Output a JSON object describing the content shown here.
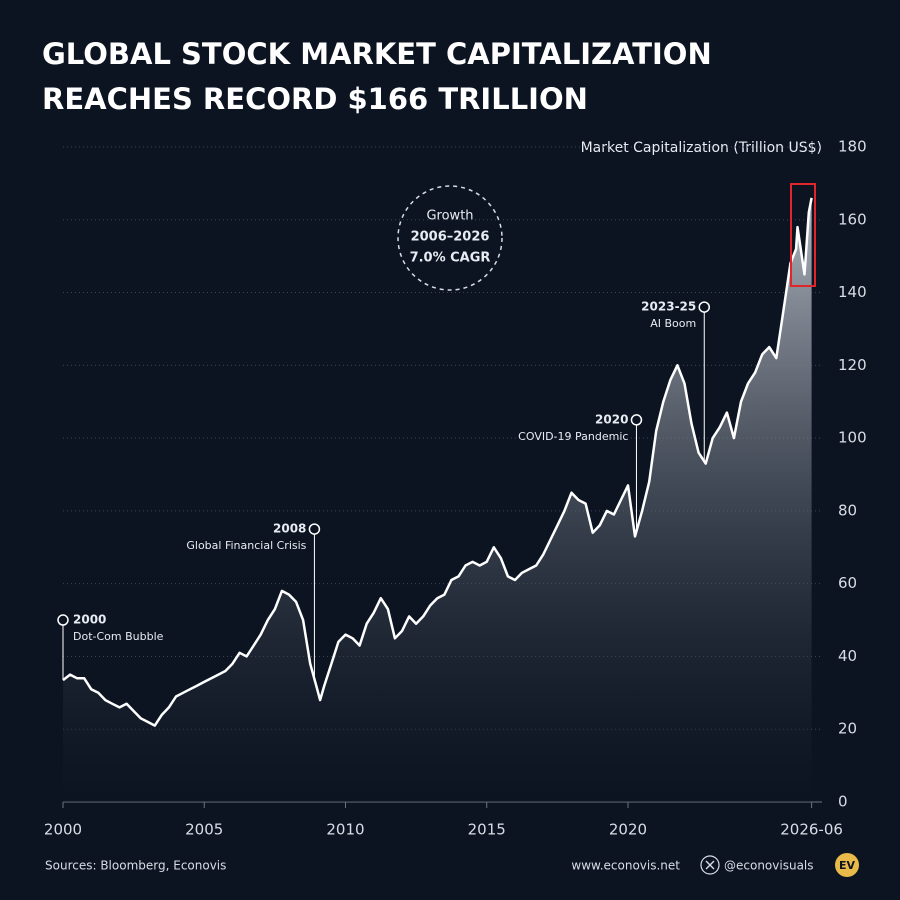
{
  "chart_data": {
    "type": "area",
    "title": [
      "GLOBAL STOCK MARKET CAPITALIZATION",
      "REACHES RECORD $166 TRILLION"
    ],
    "y_label": "Market Capitalization (Trillion US$)",
    "x": [
      2000.0,
      2000.25,
      2000.5,
      2000.75,
      2001.0,
      2001.25,
      2001.5,
      2001.75,
      2002.0,
      2002.25,
      2002.5,
      2002.75,
      2003.0,
      2003.25,
      2003.5,
      2003.75,
      2004.0,
      2004.25,
      2004.5,
      2004.75,
      2005.0,
      2005.25,
      2005.5,
      2005.75,
      2006.0,
      2006.25,
      2006.5,
      2006.75,
      2007.0,
      2007.25,
      2007.5,
      2007.75,
      2008.0,
      2008.25,
      2008.5,
      2008.75,
      2009.0,
      2009.1,
      2009.25,
      2009.5,
      2009.75,
      2010.0,
      2010.25,
      2010.5,
      2010.75,
      2011.0,
      2011.25,
      2011.5,
      2011.75,
      2012.0,
      2012.25,
      2012.5,
      2012.75,
      2013.0,
      2013.25,
      2013.5,
      2013.75,
      2014.0,
      2014.25,
      2014.5,
      2014.75,
      2015.0,
      2015.25,
      2015.5,
      2015.75,
      2016.0,
      2016.25,
      2016.5,
      2016.75,
      2017.0,
      2017.25,
      2017.5,
      2017.75,
      2018.0,
      2018.25,
      2018.5,
      2018.75,
      2019.0,
      2019.25,
      2019.5,
      2019.75,
      2020.0,
      2020.25,
      2020.5,
      2020.75,
      2021.0,
      2021.25,
      2021.5,
      2021.75,
      2022.0,
      2022.25,
      2022.5,
      2022.75,
      2023.0,
      2023.25,
      2023.5,
      2023.75,
      2024.0,
      2024.25,
      2024.5,
      2024.75,
      2025.0,
      2025.25,
      2025.5,
      2025.75,
      2025.95,
      2026.0,
      2026.25,
      2026.4,
      2026.5
    ],
    "series": [
      {
        "color": "#ffffff",
        "values": [
          33.5,
          35,
          34,
          34,
          31,
          30,
          28,
          27,
          26,
          27,
          25,
          23,
          22,
          21,
          24,
          26,
          29,
          30,
          31,
          32,
          33,
          34,
          35,
          36,
          38,
          41,
          40,
          43,
          46,
          50,
          53,
          58,
          57,
          55,
          50,
          38,
          31,
          28,
          32,
          38,
          44,
          46,
          45,
          43,
          49,
          52,
          56,
          53,
          45,
          47,
          51,
          49,
          51,
          54,
          56,
          57,
          61,
          62,
          65,
          66,
          65,
          66,
          70,
          67,
          62,
          61,
          63,
          64,
          65,
          68,
          72,
          76,
          80,
          85,
          83,
          82,
          74,
          76,
          80,
          79,
          83,
          87,
          73,
          80,
          88,
          102,
          110,
          116,
          120,
          115,
          104,
          96,
          93,
          100,
          103,
          107,
          100,
          110,
          115,
          118,
          123,
          125,
          122,
          135,
          148,
          152,
          158,
          145,
          162,
          166
        ]
      }
    ],
    "xlim": [
      2000,
      2026.5
    ],
    "xticks": [
      2000,
      2005,
      2010,
      2015,
      2020,
      {
        "value": 2026.5,
        "label": "2026-06"
      }
    ],
    "ylim": [
      0,
      180
    ],
    "yticks": [
      0,
      20,
      40,
      60,
      80,
      100,
      120,
      140,
      160,
      180
    ],
    "grid": true,
    "annotations": [
      {
        "label": "2000",
        "text": "Dot-Com Bubble",
        "x": 2000,
        "y": 50
      },
      {
        "label": "2008",
        "text": "Global Financial Crisis",
        "x": 2008.9,
        "y": 75
      },
      {
        "label": "2020",
        "text": "COVID-19 Pandemic",
        "x": 2020.3,
        "y": 105
      },
      {
        "label": "2023-25",
        "text": "AI Boom",
        "x": 2022.7,
        "y": 136
      }
    ],
    "callout": [
      "Growth",
      "2006–2026",
      "7.0% CAGR"
    ],
    "source": "Sources: Bloomberg, Econovis",
    "website": "www.econovis.net",
    "handle": "@econovisuals",
    "logo": "EV"
  }
}
